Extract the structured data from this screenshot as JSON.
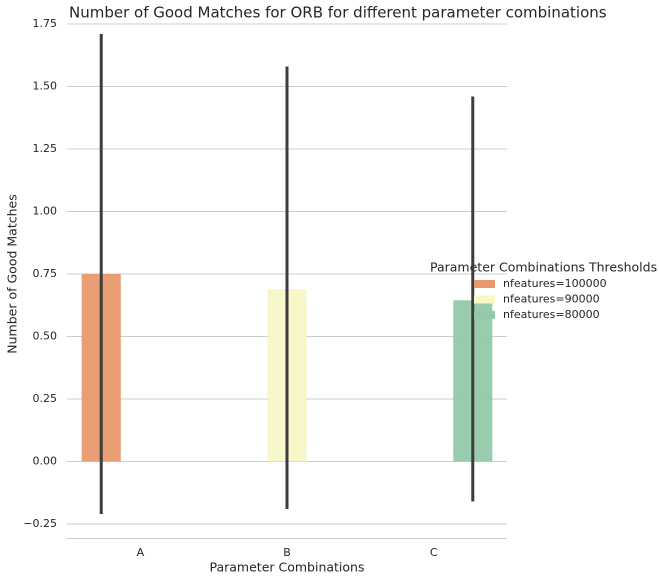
{
  "chart_data": {
    "type": "bar",
    "title": "Number of Good Matches for ORB for different parameter combinations",
    "x_label": "Parameter Combinations",
    "y_label": "Number of Good Matches",
    "categories": [
      "A",
      "B",
      "C"
    ],
    "series": [
      {
        "name": "nfeatures=100000",
        "color": "#e8996b",
        "values": [
          0.75,
          null,
          null
        ],
        "error_low": [
          -0.21,
          null,
          null
        ],
        "error_high": [
          1.71,
          null,
          null
        ]
      },
      {
        "name": "nfeatures=90000",
        "color": "#f8f7c6",
        "values": [
          null,
          0.69,
          null
        ],
        "error_low": [
          null,
          -0.19,
          null
        ],
        "error_high": [
          null,
          1.58,
          null
        ]
      },
      {
        "name": "nfeatures=80000",
        "color": "#93c9a9",
        "values": [
          null,
          null,
          0.645
        ],
        "error_low": [
          null,
          null,
          -0.16
        ],
        "error_high": [
          null,
          null,
          1.46
        ]
      }
    ],
    "legend_title": "Parameter Combinations Thresholds",
    "legend_position": "right",
    "ylim": [
      -0.31,
      1.75
    ],
    "yticks": [
      {
        "value": -0.25,
        "label": "−0.25"
      },
      {
        "value": 0,
        "label": "0.00"
      },
      {
        "value": 0.25,
        "label": "0.25"
      },
      {
        "value": 0.5,
        "label": "0.50"
      },
      {
        "value": 0.75,
        "label": "0.75"
      },
      {
        "value": 1,
        "label": "1.00"
      },
      {
        "value": 1.25,
        "label": "1.25"
      },
      {
        "value": 1.5,
        "label": "1.50"
      },
      {
        "value": 1.75,
        "label": "1.75"
      }
    ],
    "grid": true
  }
}
